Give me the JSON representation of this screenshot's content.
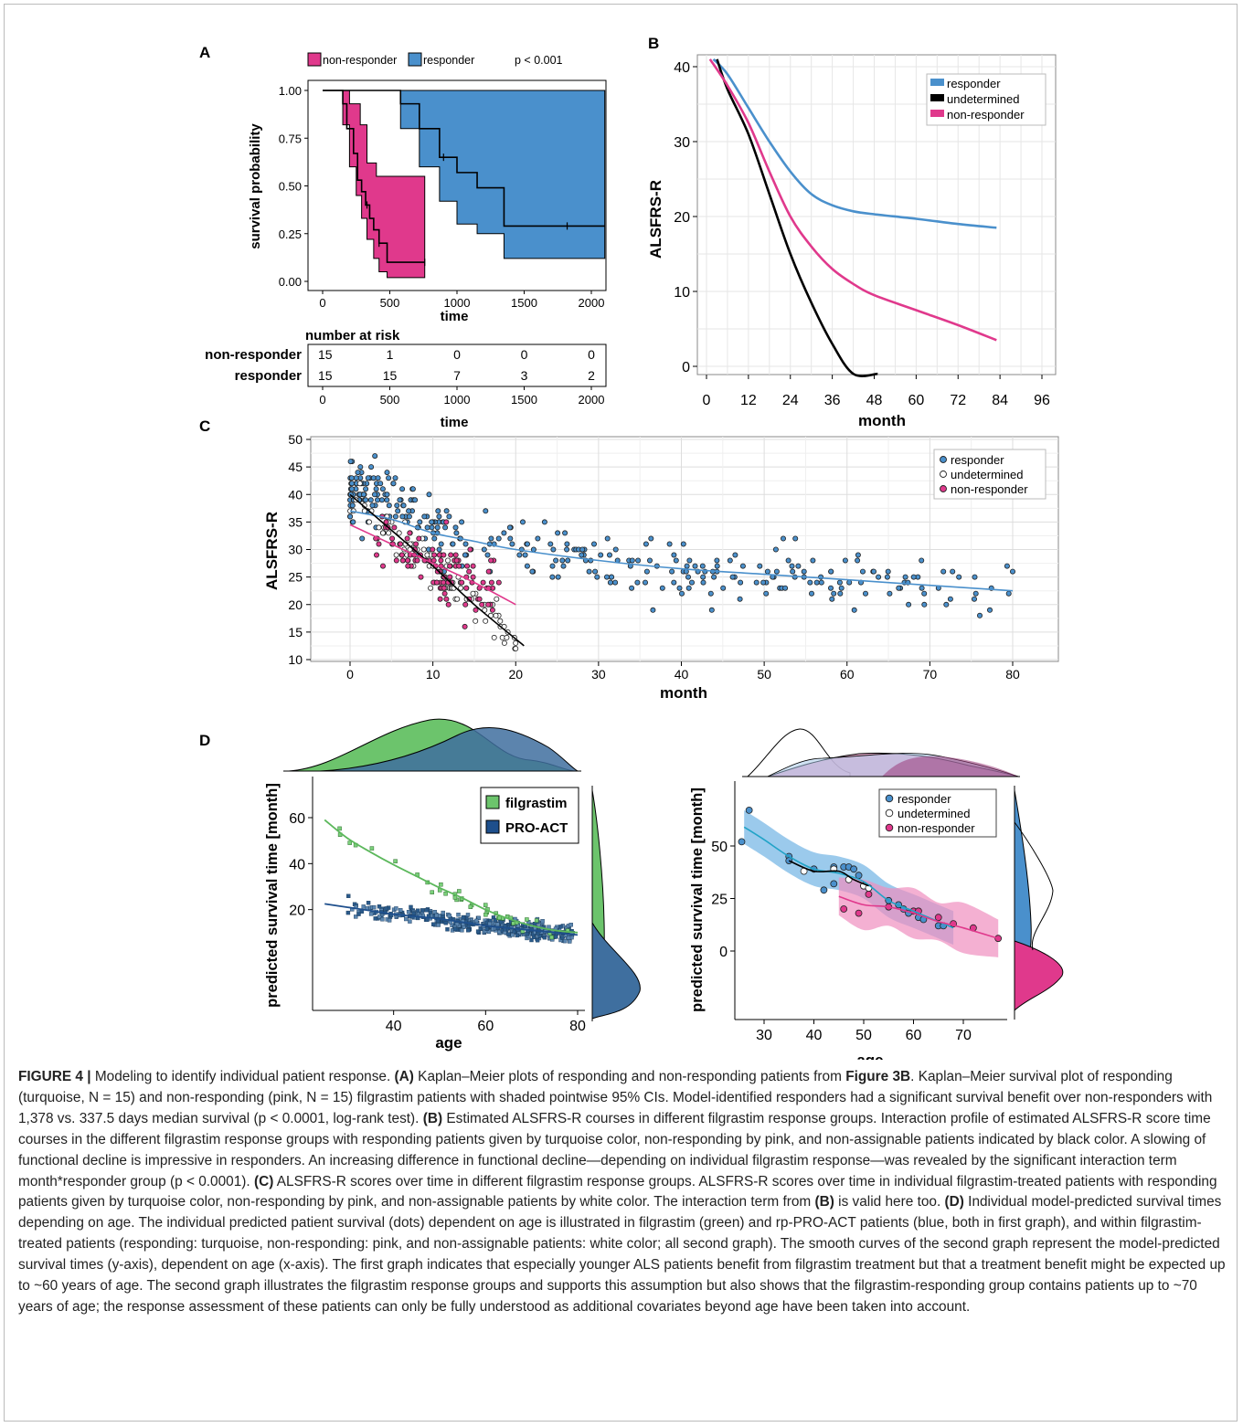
{
  "panelA": {
    "letter": "A",
    "legend": {
      "non": "non-responder",
      "resp": "responder",
      "p": "p < 0.001"
    },
    "ylabel": "survival probability",
    "xlabel": "time",
    "yticks": [
      "1.00",
      "0.75",
      "0.50",
      "0.25",
      "0.00"
    ],
    "xticks": [
      "0",
      "500",
      "1000",
      "1500",
      "2000"
    ],
    "risk": {
      "title": "number at risk",
      "rows": [
        {
          "label": "non-responder",
          "values": [
            "15",
            "1",
            "0",
            "0",
            "0"
          ]
        },
        {
          "label": "responder",
          "values": [
            "15",
            "15",
            "7",
            "3",
            "2"
          ]
        }
      ],
      "xticks": [
        "0",
        "500",
        "1000",
        "1500",
        "2000"
      ],
      "xlabel": "time"
    }
  },
  "panelB": {
    "letter": "B"
  },
  "panelC": {
    "letter": "C"
  },
  "panelD": {
    "letter": "D"
  },
  "colors": {
    "responder": "#4a90cc",
    "nonresponder": "#e0398c",
    "filgrastim": "#5cb85c",
    "proact": "#1e4f8c",
    "undetermined": "#000000"
  },
  "chart_data": [
    {
      "type": "line",
      "panel": "A",
      "xlabel": "time",
      "ylabel": "survival probability",
      "xlim": [
        0,
        2100
      ],
      "ylim": [
        0,
        1
      ],
      "series": [
        {
          "name": "non-responder",
          "x": [
            0,
            150,
            180,
            230,
            260,
            290,
            320,
            350,
            380,
            420,
            480,
            760
          ],
          "y": [
            1.0,
            0.93,
            0.8,
            0.67,
            0.53,
            0.47,
            0.4,
            0.33,
            0.27,
            0.2,
            0.1,
            0.1
          ]
        },
        {
          "name": "responder",
          "x": [
            0,
            580,
            720,
            870,
            1000,
            1150,
            1350,
            1800,
            2100
          ],
          "y": [
            1.0,
            0.93,
            0.8,
            0.65,
            0.57,
            0.49,
            0.29,
            0.29,
            0.29
          ]
        }
      ]
    },
    {
      "type": "line",
      "panel": "B",
      "xlabel": "month",
      "ylabel": "ALSFRS-R",
      "xticks": [
        "0",
        "12",
        "24",
        "36",
        "48",
        "60",
        "72",
        "84",
        "96"
      ],
      "yticks": [
        "0",
        "10",
        "20",
        "30",
        "40"
      ],
      "xlim": [
        0,
        96
      ],
      "ylim": [
        0,
        41
      ],
      "series": [
        {
          "name": "responder",
          "x": [
            2,
            6,
            12,
            18,
            24,
            30,
            36,
            42,
            48,
            60,
            72,
            83
          ],
          "y": [
            41,
            39,
            34.5,
            30,
            26,
            23,
            21.5,
            20.7,
            20.3,
            19.7,
            19,
            18.5
          ]
        },
        {
          "name": "undetermined",
          "x": [
            3,
            6,
            12,
            18,
            24,
            30,
            36,
            42,
            49
          ],
          "y": [
            41,
            37,
            31,
            23,
            15,
            8.5,
            3,
            -1,
            -1
          ]
        },
        {
          "name": "non-responder",
          "x": [
            1,
            6,
            12,
            18,
            24,
            30,
            36,
            42,
            48,
            60,
            72,
            83
          ],
          "y": [
            41,
            37.5,
            32.5,
            26,
            20,
            16,
            13,
            11,
            9.5,
            7.5,
            5.5,
            3.5
          ]
        }
      ]
    },
    {
      "type": "scatter",
      "panel": "C",
      "xlabel": "month",
      "ylabel": "ALSFRS-R",
      "xticks": [
        "0",
        "10",
        "20",
        "30",
        "40",
        "50",
        "60",
        "70",
        "80"
      ],
      "yticks": [
        "10",
        "15",
        "20",
        "25",
        "30",
        "35",
        "40",
        "45",
        "50"
      ],
      "xlim": [
        -5,
        82
      ],
      "ylim": [
        10,
        50
      ],
      "legend": [
        "responder",
        "undetermined",
        "non-responder"
      ],
      "fits": [
        {
          "name": "responder",
          "x": [
            0,
            5,
            10,
            15,
            20,
            30,
            40,
            50,
            60,
            70,
            80
          ],
          "y": [
            37,
            35.5,
            33,
            31.5,
            30,
            28,
            26.5,
            25.5,
            24.5,
            23.5,
            22.5
          ]
        },
        {
          "name": "undetermined",
          "x": [
            0,
            5,
            10,
            15,
            21
          ],
          "y": [
            40,
            33.5,
            27,
            20,
            12.5
          ]
        },
        {
          "name": "non-responder",
          "x": [
            0,
            5,
            10,
            15,
            20
          ],
          "y": [
            34.5,
            31,
            27.5,
            24,
            20
          ]
        }
      ]
    },
    {
      "type": "scatter",
      "panel": "D-left",
      "xlabel": "age",
      "ylabel": "predicted survival time [month]",
      "xticks": [
        "40",
        "60",
        "80"
      ],
      "yticks": [
        "20",
        "40",
        "60"
      ],
      "xlim": [
        22,
        82
      ],
      "ylim": [
        5,
        70
      ],
      "legend": [
        "filgrastim",
        "PRO-ACT"
      ],
      "fits": [
        {
          "name": "filgrastim",
          "x": [
            25,
            30,
            35,
            40,
            45,
            50,
            55,
            60,
            65,
            70,
            75,
            80
          ],
          "y": [
            59,
            51,
            45,
            39.5,
            34.5,
            29.5,
            25,
            20,
            16,
            13,
            11,
            10
          ]
        },
        {
          "name": "PRO-ACT",
          "x": [
            25,
            30,
            35,
            40,
            45,
            50,
            55,
            60,
            65,
            70,
            75,
            80
          ],
          "y": [
            22.5,
            21,
            19.5,
            18,
            17,
            16,
            14.5,
            13,
            12,
            11,
            10,
            9
          ]
        }
      ]
    },
    {
      "type": "scatter",
      "panel": "D-right",
      "xlabel": "age",
      "ylabel": "predicted survival time [month]",
      "xticks": [
        "30",
        "40",
        "50",
        "60",
        "70"
      ],
      "yticks": [
        "0",
        "25",
        "50"
      ],
      "xlim": [
        23,
        79
      ],
      "ylim": [
        -12,
        72
      ],
      "legend": [
        "responder",
        "undetermined",
        "non-responder"
      ],
      "fits": [
        {
          "name": "responder",
          "x": [
            26,
            30,
            35,
            40,
            45,
            50,
            55,
            60,
            65,
            68
          ],
          "y": [
            59,
            53,
            45,
            39,
            37,
            33,
            24,
            19,
            14,
            11
          ]
        },
        {
          "name": "undetermined",
          "x": [
            35,
            40,
            45,
            48,
            51
          ],
          "y": [
            43,
            38,
            38,
            34,
            31
          ]
        },
        {
          "name": "non-responder",
          "x": [
            45,
            50,
            55,
            60,
            65,
            70,
            77
          ],
          "y": [
            26,
            22,
            21,
            18,
            14,
            11,
            6
          ]
        }
      ]
    }
  ],
  "caption": {
    "fig": "FIGURE 4 |",
    "t1": " Modeling to identify individual patient response. ",
    "b1": "(A)",
    "t2": " Kaplan–Meier plots of responding and non-responding patients from ",
    "b2": "Figure 3B",
    "t3": ". Kaplan–Meier survival plot of responding (turquoise, N = 15) and non-responding (pink, N = 15) filgrastim patients with shaded pointwise 95% CIs. Model-identified responders had a significant survival benefit over non-responders with 1,378 vs. 337.5 days median survival (p < 0.0001, log-rank test). ",
    "b3": "(B)",
    "t4": " Estimated ALSFRS-R courses in different filgrastim response groups. Interaction profile of estimated ALSFRS-R score time courses in the different filgrastim response groups with responding patients given by turquoise color, non-responding by pink, and non-assignable patients indicated by black color. A slowing of functional decline is impressive in responders. An increasing difference in functional decline—depending on individual filgrastim response—was revealed by the significant interaction term month*responder group (p < 0.0001). ",
    "b4": "(C)",
    "t5": " ALSFRS-R scores over time in different filgrastim response groups. ALSFRS-R scores over time in individual filgrastim-treated patients with responding patients given by turquoise color, non-responding by pink, and non-assignable patients by white color. The interaction term from ",
    "b5": "(B)",
    "t6": " is valid here too. ",
    "b6": "(D)",
    "t7": " Individual model-predicted survival times depending on age. The individual predicted patient survival (dots) dependent on age is illustrated in filgrastim (green) and rp-PRO-ACT patients (blue, both in first graph), and within filgrastim-treated patients (responding: turquoise, non-responding: pink, and non-assignable patients: white color; all second graph). The smooth curves of the second graph represent the model-predicted survival times (y-axis), dependent on age (x-axis). The first graph indicates that especially younger ALS patients benefit from filgrastim treatment but that a treatment benefit might be expected up to ~60 years of age. The second graph illustrates the filgrastim response groups and supports this assumption but also shows that the filgrastim-responding group contains patients up to ~70 years of age; the response assessment of these patients can only be fully understood as additional covariates beyond age have been taken into account."
  }
}
